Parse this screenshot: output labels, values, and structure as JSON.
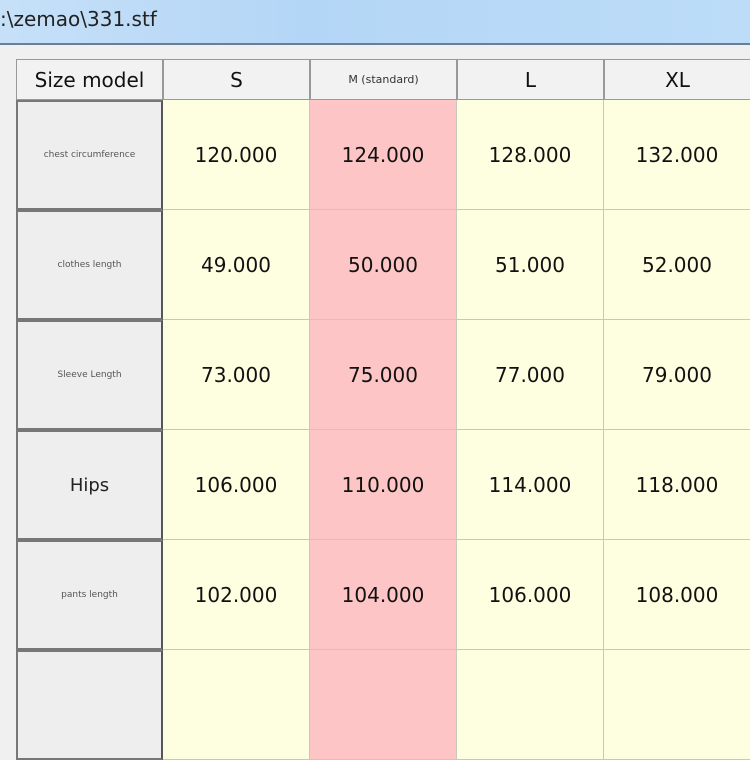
{
  "window": {
    "title": ":\\zemao\\331.stf"
  },
  "table": {
    "headers": [
      "Size model",
      "S",
      "M (standard)",
      "L",
      "XL"
    ],
    "rows": [
      {
        "label": "chest circumference",
        "values": [
          "120.000",
          "124.000",
          "128.000",
          "132.000"
        ]
      },
      {
        "label": "clothes length",
        "values": [
          "49.000",
          "50.000",
          "51.000",
          "52.000"
        ]
      },
      {
        "label": "Sleeve Length",
        "values": [
          "73.000",
          "75.000",
          "77.000",
          "79.000"
        ]
      },
      {
        "label": "Hips",
        "values": [
          "106.000",
          "110.000",
          "114.000",
          "118.000"
        ]
      },
      {
        "label": "pants length",
        "values": [
          "102.000",
          "104.000",
          "106.000",
          "108.000"
        ]
      }
    ],
    "colors": {
      "standard_column": "#fdc5c5",
      "other_columns": "#fefee0"
    }
  }
}
